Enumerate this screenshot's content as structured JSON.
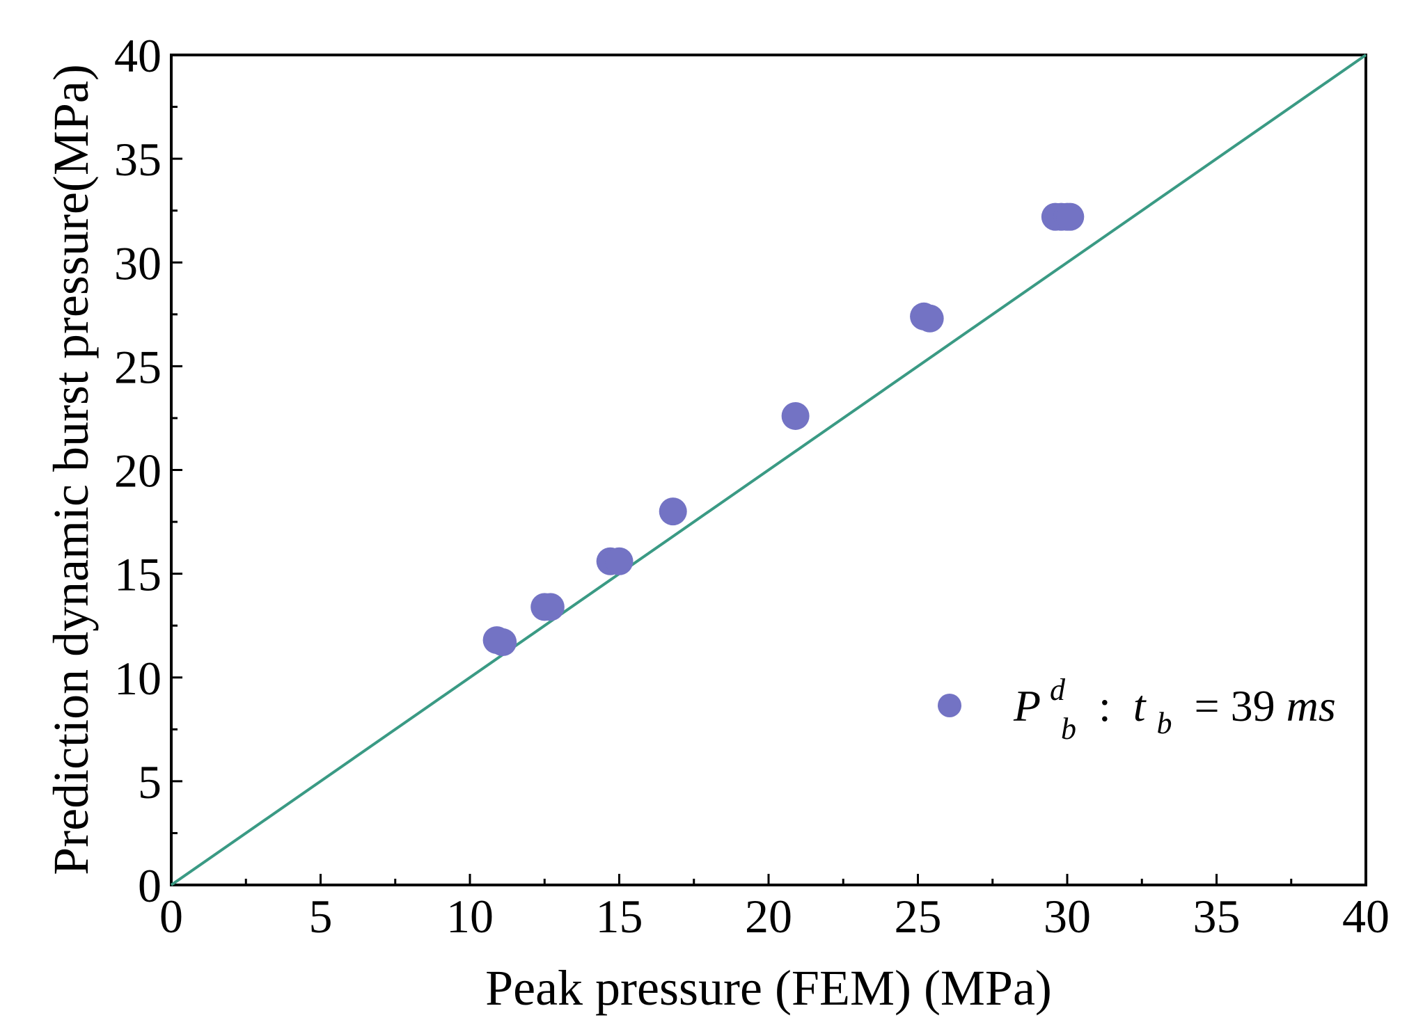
{
  "chart_data": {
    "type": "scatter",
    "title": "",
    "xlabel": "Peak pressure (FEM) (MPa)",
    "ylabel": "Prediction dynamic burst pressure(MPa)",
    "xlim": [
      0,
      40
    ],
    "ylim": [
      0,
      40
    ],
    "xticks": [
      0,
      5,
      10,
      15,
      20,
      25,
      30,
      35,
      40
    ],
    "yticks": [
      0,
      5,
      10,
      15,
      20,
      25,
      30,
      35,
      40
    ],
    "grid": false,
    "legend_position": "bottom-right",
    "series": [
      {
        "name": "P_b^d : t_b = 39ms",
        "color": "#7373c4",
        "marker": "circle",
        "points": [
          {
            "x": 10.9,
            "y": 11.8
          },
          {
            "x": 11.1,
            "y": 11.7
          },
          {
            "x": 12.5,
            "y": 13.4
          },
          {
            "x": 12.7,
            "y": 13.4
          },
          {
            "x": 14.7,
            "y": 15.6
          },
          {
            "x": 15.0,
            "y": 15.6
          },
          {
            "x": 16.8,
            "y": 18.0
          },
          {
            "x": 20.9,
            "y": 22.6
          },
          {
            "x": 25.2,
            "y": 27.4
          },
          {
            "x": 25.4,
            "y": 27.3
          },
          {
            "x": 29.6,
            "y": 32.2
          },
          {
            "x": 29.8,
            "y": 32.2
          },
          {
            "x": 30.0,
            "y": 32.2
          },
          {
            "x": 30.1,
            "y": 32.2
          }
        ]
      }
    ],
    "reference_line": {
      "name": "y = x",
      "color": "#3a9a84",
      "from": [
        0,
        0
      ],
      "to": [
        40,
        40
      ]
    },
    "legend": {
      "label_main": "P",
      "label_sup": "d",
      "label_sub": "b",
      "label_colon": " : ",
      "label_t": "t",
      "label_t_sub": "b",
      "label_eq": " = 39",
      "label_unit": "ms"
    }
  }
}
